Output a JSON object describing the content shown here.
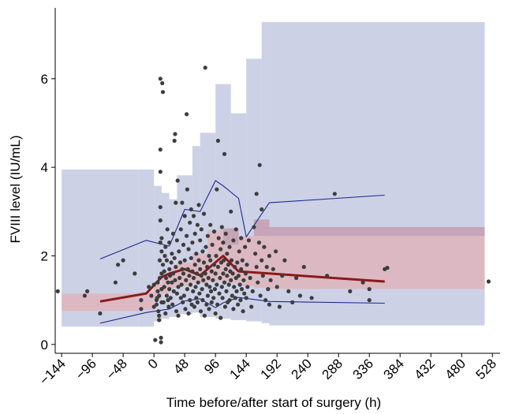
{
  "chart_data": {
    "type": "scatter",
    "xlabel": "Time before/after start of surgery (h)",
    "ylabel": "FVIII level (IU/mL)",
    "xlim": [
      -154,
      540
    ],
    "ylim": [
      -0.2,
      7.6
    ],
    "x_ticks": [
      -144,
      -96,
      -48,
      0,
      48,
      96,
      144,
      192,
      240,
      288,
      336,
      384,
      432,
      480,
      528
    ],
    "x_tick_labels": [
      "−144",
      "−96",
      "−48",
      "0",
      "48",
      "96",
      "144",
      "192",
      "240",
      "288",
      "336",
      "384",
      "432",
      "480",
      "528"
    ],
    "y_ticks": [
      0,
      2,
      4,
      6
    ],
    "y_tick_labels": [
      "0",
      "2",
      "4",
      "6"
    ],
    "grid": false,
    "colors": {
      "observed_points": "#3d3d3d",
      "median_line": "#8b1a1a",
      "percentile_lines": "#1f2a8c",
      "pi_band_outer": "#ccd1e6",
      "ci_band_median": "#dcb9c2",
      "overlap_band": "#c5a5b7"
    },
    "outer_prediction_band": [
      {
        "x0": -144,
        "x1": -24,
        "lo": 0.4,
        "hi": 3.95
      },
      {
        "x0": -24,
        "x1": 0,
        "lo": 0.4,
        "hi": 3.95
      },
      {
        "x0": 0,
        "x1": 12,
        "lo": 0.52,
        "hi": 3.58
      },
      {
        "x0": 12,
        "x1": 24,
        "lo": 0.58,
        "hi": 3.42
      },
      {
        "x0": 24,
        "x1": 36,
        "lo": 0.62,
        "hi": 3.28
      },
      {
        "x0": 36,
        "x1": 60,
        "lo": 0.68,
        "hi": 3.82
      },
      {
        "x0": 60,
        "x1": 72,
        "lo": 0.72,
        "hi": 4.48
      },
      {
        "x0": 72,
        "x1": 96,
        "lo": 0.62,
        "hi": 4.78
      },
      {
        "x0": 96,
        "x1": 120,
        "lo": 0.58,
        "hi": 5.88
      },
      {
        "x0": 120,
        "x1": 144,
        "lo": 0.55,
        "hi": 5.22
      },
      {
        "x0": 144,
        "x1": 168,
        "lo": 0.52,
        "hi": 6.45
      },
      {
        "x0": 168,
        "x1": 180,
        "lo": 0.48,
        "hi": 7.28
      },
      {
        "x0": 180,
        "x1": 516,
        "lo": 0.43,
        "hi": 7.28
      }
    ],
    "median_ci_band": [
      {
        "x0": -144,
        "x1": -24,
        "lo": 0.75,
        "hi": 1.15
      },
      {
        "x0": -24,
        "x1": 0,
        "lo": 0.78,
        "hi": 1.18
      },
      {
        "x0": 0,
        "x1": 12,
        "lo": 1.02,
        "hi": 1.35
      },
      {
        "x0": 12,
        "x1": 24,
        "lo": 1.15,
        "hi": 1.52
      },
      {
        "x0": 24,
        "x1": 36,
        "lo": 1.28,
        "hi": 1.72
      },
      {
        "x0": 36,
        "x1": 60,
        "lo": 1.32,
        "hi": 1.85
      },
      {
        "x0": 60,
        "x1": 84,
        "lo": 1.38,
        "hi": 2.05
      },
      {
        "x0": 84,
        "x1": 108,
        "lo": 1.42,
        "hi": 2.58
      },
      {
        "x0": 108,
        "x1": 132,
        "lo": 1.38,
        "hi": 2.62
      },
      {
        "x0": 132,
        "x1": 156,
        "lo": 1.32,
        "hi": 2.45
      },
      {
        "x0": 156,
        "x1": 180,
        "lo": 1.28,
        "hi": 2.82
      },
      {
        "x0": 180,
        "x1": 516,
        "lo": 1.25,
        "hi": 2.65
      }
    ],
    "overlap_band": [
      {
        "x0": 108,
        "x1": 132,
        "lo": 2.25,
        "hi": 2.62
      },
      {
        "x0": 156,
        "x1": 180,
        "lo": 2.45,
        "hi": 2.82
      },
      {
        "x0": 180,
        "x1": 516,
        "lo": 2.45,
        "hi": 2.65
      }
    ],
    "series": [
      {
        "role": "median",
        "x": [
          -84,
          -12,
          12,
          24,
          48,
          72,
          108,
          132,
          360
        ],
        "y": [
          0.97,
          1.15,
          1.52,
          1.6,
          1.7,
          1.56,
          2.0,
          1.65,
          1.42
        ]
      },
      {
        "role": "upper-percentile",
        "x": [
          -84,
          -12,
          24,
          48,
          72,
          96,
          108,
          132,
          144,
          180,
          360
        ],
        "y": [
          1.93,
          2.35,
          2.22,
          3.05,
          3.0,
          3.7,
          3.58,
          3.3,
          2.43,
          3.2,
          3.37
        ]
      },
      {
        "role": "lower-percentile",
        "x": [
          -84,
          -12,
          24,
          48,
          72,
          96,
          108,
          132,
          144,
          180,
          360
        ],
        "y": [
          0.48,
          0.72,
          0.8,
          0.98,
          1.03,
          0.83,
          0.94,
          1.06,
          1.04,
          0.97,
          0.93
        ]
      }
    ],
    "points": [
      [
        -150,
        1.2
      ],
      [
        -108,
        1.1
      ],
      [
        -104,
        1.2
      ],
      [
        -84,
        0.7
      ],
      [
        -60,
        1.4
      ],
      [
        -56,
        1.8
      ],
      [
        -48,
        1.9
      ],
      [
        -30,
        1.6
      ],
      [
        -20,
        1.0
      ],
      [
        -20,
        0.8
      ],
      [
        -8,
        1.3
      ],
      [
        -4,
        1.1
      ],
      [
        0,
        0.85
      ],
      [
        0,
        1.35
      ],
      [
        2,
        0.1
      ],
      [
        4,
        0.9
      ],
      [
        4,
        1.0
      ],
      [
        5,
        1.05
      ],
      [
        6,
        1.2
      ],
      [
        6,
        1.4
      ],
      [
        7,
        0.75
      ],
      [
        8,
        0.55
      ],
      [
        8,
        0.65
      ],
      [
        8,
        1.1
      ],
      [
        9,
        1.5
      ],
      [
        9,
        1.9
      ],
      [
        10,
        2.3
      ],
      [
        10,
        2.8
      ],
      [
        10,
        3.1
      ],
      [
        10,
        3.9
      ],
      [
        10,
        4.4
      ],
      [
        10,
        6.0
      ],
      [
        11,
        0.05
      ],
      [
        11,
        0.15
      ],
      [
        12,
        0.95
      ],
      [
        12,
        1.25
      ],
      [
        12,
        1.6
      ],
      [
        12,
        2.1
      ],
      [
        12,
        2.4
      ],
      [
        13,
        5.9
      ],
      [
        14,
        5.7
      ],
      [
        14,
        1.8
      ],
      [
        15,
        0.95
      ],
      [
        16,
        1.3
      ],
      [
        16,
        1.65
      ],
      [
        17,
        2.0
      ],
      [
        18,
        2.2
      ],
      [
        18,
        0.7
      ],
      [
        19,
        1.5
      ],
      [
        20,
        1.1
      ],
      [
        20,
        1.9
      ],
      [
        21,
        2.6
      ],
      [
        22,
        1.4
      ],
      [
        22,
        1.0
      ],
      [
        23,
        0.85
      ],
      [
        24,
        1.7
      ],
      [
        24,
        2.3
      ],
      [
        24,
        1.25
      ],
      [
        25,
        1.55
      ],
      [
        26,
        1.05
      ],
      [
        27,
        1.85
      ],
      [
        28,
        2.05
      ],
      [
        28,
        1.4
      ],
      [
        29,
        0.9
      ],
      [
        30,
        1.6
      ],
      [
        30,
        2.5
      ],
      [
        31,
        1.2
      ],
      [
        32,
        1.95
      ],
      [
        32,
        4.6
      ],
      [
        33,
        4.75
      ],
      [
        33,
        1.45
      ],
      [
        34,
        3.2
      ],
      [
        34,
        1.75
      ],
      [
        35,
        0.75
      ],
      [
        36,
        2.35
      ],
      [
        36,
        1.15
      ],
      [
        37,
        3.7
      ],
      [
        38,
        1.3
      ],
      [
        38,
        0.65
      ],
      [
        39,
        2.1
      ],
      [
        40,
        1.5
      ],
      [
        41,
        1.85
      ],
      [
        42,
        1.05
      ],
      [
        42,
        2.6
      ],
      [
        43,
        1.35
      ],
      [
        44,
        1.7
      ],
      [
        44,
        3.2
      ],
      [
        45,
        0.95
      ],
      [
        46,
        2.25
      ],
      [
        46,
        1.6
      ],
      [
        47,
        1.1
      ],
      [
        48,
        1.9
      ],
      [
        48,
        2.9
      ],
      [
        49,
        0.8
      ],
      [
        50,
        1.45
      ],
      [
        51,
        2.45
      ],
      [
        51,
        5.2
      ],
      [
        52,
        1.25
      ],
      [
        52,
        3.5
      ],
      [
        53,
        1.7
      ],
      [
        54,
        0.7
      ],
      [
        54,
        2.15
      ],
      [
        55,
        1.55
      ],
      [
        56,
        1.0
      ],
      [
        56,
        2.75
      ],
      [
        57,
        1.35
      ],
      [
        58,
        1.95
      ],
      [
        58,
        3.05
      ],
      [
        59,
        0.9
      ],
      [
        60,
        1.65
      ],
      [
        60,
        2.3
      ],
      [
        61,
        1.2
      ],
      [
        62,
        2.9
      ],
      [
        62,
        1.5
      ],
      [
        63,
        0.85
      ],
      [
        64,
        1.8
      ],
      [
        64,
        2.5
      ],
      [
        65,
        1.3
      ],
      [
        66,
        1.05
      ],
      [
        66,
        2.05
      ],
      [
        67,
        1.6
      ],
      [
        68,
        0.95
      ],
      [
        68,
        2.7
      ],
      [
        69,
        1.4
      ],
      [
        70,
        1.9
      ],
      [
        70,
        3.15
      ],
      [
        71,
        1.15
      ],
      [
        72,
        1.7
      ],
      [
        72,
        2.35
      ],
      [
        73,
        0.75
      ],
      [
        74,
        1.55
      ],
      [
        74,
        2.6
      ],
      [
        75,
        1.25
      ],
      [
        76,
        2.1
      ],
      [
        76,
        1.0
      ],
      [
        77,
        1.45
      ],
      [
        78,
        1.85
      ],
      [
        78,
        2.95
      ],
      [
        79,
        0.65
      ],
      [
        80,
        1.6
      ],
      [
        80,
        6.25
      ],
      [
        81,
        2.2
      ],
      [
        82,
        1.35
      ],
      [
        82,
        0.9
      ],
      [
        83,
        1.75
      ],
      [
        84,
        2.45
      ],
      [
        84,
        1.1
      ],
      [
        85,
        1.5
      ],
      [
        86,
        2.0
      ],
      [
        86,
        0.8
      ],
      [
        87,
        1.3
      ],
      [
        88,
        1.9
      ],
      [
        88,
        2.7
      ],
      [
        89,
        1.2
      ],
      [
        90,
        1.65
      ],
      [
        90,
        0.95
      ],
      [
        91,
        2.25
      ],
      [
        92,
        1.45
      ],
      [
        93,
        1.05
      ],
      [
        94,
        1.8
      ],
      [
        94,
        2.55
      ],
      [
        95,
        1.25
      ],
      [
        96,
        1.6
      ],
      [
        96,
        0.7
      ],
      [
        97,
        2.0
      ],
      [
        98,
        1.35
      ],
      [
        98,
        3.5
      ],
      [
        99,
        0.9
      ],
      [
        100,
        1.75
      ],
      [
        100,
        4.6
      ],
      [
        101,
        2.4
      ],
      [
        102,
        1.15
      ],
      [
        103,
        1.5
      ],
      [
        104,
        2.15
      ],
      [
        104,
        0.6
      ],
      [
        105,
        1.85
      ],
      [
        106,
        1.3
      ],
      [
        106,
        2.65
      ],
      [
        107,
        1.05
      ],
      [
        108,
        1.6
      ],
      [
        108,
        2.3
      ],
      [
        109,
        1.9
      ],
      [
        110,
        1.4
      ],
      [
        110,
        4.3
      ],
      [
        111,
        0.85
      ],
      [
        112,
        1.7
      ],
      [
        112,
        2.5
      ],
      [
        113,
        1.2
      ],
      [
        114,
        2.05
      ],
      [
        114,
        1.55
      ],
      [
        115,
        0.95
      ],
      [
        116,
        1.8
      ],
      [
        117,
        1.35
      ],
      [
        118,
        2.2
      ],
      [
        118,
        1.0
      ],
      [
        119,
        1.65
      ],
      [
        120,
        1.45
      ],
      [
        120,
        3.0
      ],
      [
        121,
        1.9
      ],
      [
        122,
        1.1
      ],
      [
        123,
        1.6
      ],
      [
        124,
        2.35
      ],
      [
        124,
        0.8
      ],
      [
        125,
        1.3
      ],
      [
        126,
        1.75
      ],
      [
        127,
        1.05
      ],
      [
        128,
        2.6
      ],
      [
        128,
        1.5
      ],
      [
        129,
        1.2
      ],
      [
        130,
        1.85
      ],
      [
        131,
        0.9
      ],
      [
        132,
        1.55
      ],
      [
        133,
        2.1
      ],
      [
        134,
        1.35
      ],
      [
        135,
        1.0
      ],
      [
        136,
        1.7
      ],
      [
        136,
        2.4
      ],
      [
        137,
        1.25
      ],
      [
        138,
        1.9
      ],
      [
        139,
        0.75
      ],
      [
        140,
        1.45
      ],
      [
        141,
        1.15
      ],
      [
        142,
        2.2
      ],
      [
        143,
        1.6
      ],
      [
        144,
        1.05
      ],
      [
        145,
        1.8
      ],
      [
        146,
        1.3
      ],
      [
        148,
        2.35
      ],
      [
        150,
        1.5
      ],
      [
        152,
        0.85
      ],
      [
        154,
        1.2
      ],
      [
        156,
        2.65
      ],
      [
        158,
        2.05
      ],
      [
        160,
        1.75
      ],
      [
        160,
        3.4
      ],
      [
        162,
        1.4
      ],
      [
        164,
        2.3
      ],
      [
        165,
        4.05
      ],
      [
        166,
        1.1
      ],
      [
        168,
        3.05
      ],
      [
        168,
        1.9
      ],
      [
        170,
        1.55
      ],
      [
        172,
        2.2
      ],
      [
        174,
        1.0
      ],
      [
        176,
        1.75
      ],
      [
        178,
        1.25
      ],
      [
        180,
        2.0
      ],
      [
        180,
        0.9
      ],
      [
        182,
        1.45
      ],
      [
        186,
        1.7
      ],
      [
        190,
        2.1
      ],
      [
        192,
        1.3
      ],
      [
        196,
        0.85
      ],
      [
        200,
        1.55
      ],
      [
        204,
        1.9
      ],
      [
        210,
        1.2
      ],
      [
        216,
        0.95
      ],
      [
        222,
        1.5
      ],
      [
        228,
        1.1
      ],
      [
        234,
        1.75
      ],
      [
        246,
        1.05
      ],
      [
        270,
        1.55
      ],
      [
        282,
        3.4
      ],
      [
        306,
        1.2
      ],
      [
        326,
        1.4
      ],
      [
        336,
        1.0
      ],
      [
        336,
        1.25
      ],
      [
        360,
        1.7
      ],
      [
        364,
        1.73
      ],
      [
        522,
        1.42
      ]
    ]
  }
}
